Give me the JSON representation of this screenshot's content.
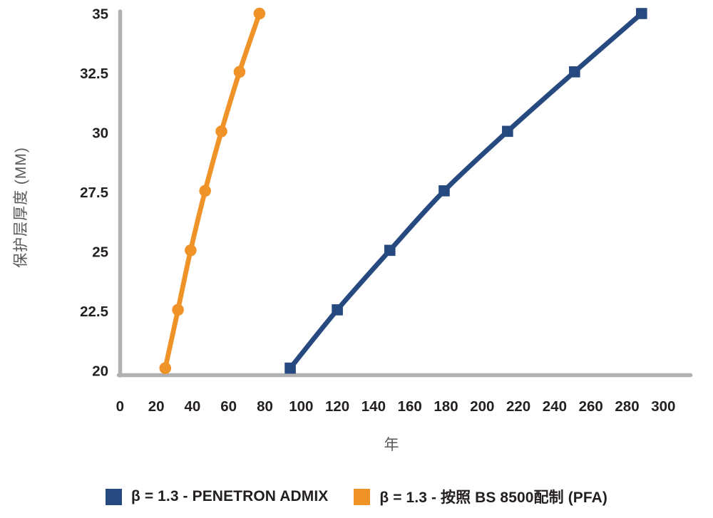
{
  "chart_data": {
    "type": "line",
    "title": "",
    "xlabel": "年",
    "ylabel": "保护层厚度 (MM)",
    "xlim": [
      0,
      300
    ],
    "ylim": [
      20,
      35
    ],
    "x_ticks": [
      0,
      20,
      40,
      60,
      80,
      100,
      120,
      140,
      160,
      180,
      200,
      220,
      240,
      260,
      280,
      300
    ],
    "y_ticks": [
      20,
      22.5,
      25,
      27.5,
      30,
      32.5,
      35
    ],
    "grid": false,
    "legend_position": "bottom",
    "series": [
      {
        "name": "β = 1.3 - PENETRON ADMIX",
        "color": "#26497F",
        "marker": "square",
        "x": [
          94,
          120,
          149,
          179,
          214,
          251,
          288
        ],
        "y": [
          20.1,
          22.55,
          25.05,
          27.55,
          30.05,
          32.55,
          35
        ]
      },
      {
        "name": "β = 1.3 - 按照 BS 8500配制 (PFA)",
        "color": "#EF9329",
        "marker": "circle",
        "x": [
          25,
          32,
          39,
          47,
          56,
          66,
          77
        ],
        "y": [
          20.1,
          22.55,
          25.05,
          27.55,
          30.05,
          32.55,
          35
        ]
      }
    ],
    "colors": {
      "axis_line": "#B1B1B4",
      "tick_text": "#231F20",
      "axis_title_text": "#57575A",
      "background": "#FFFFFF"
    }
  }
}
